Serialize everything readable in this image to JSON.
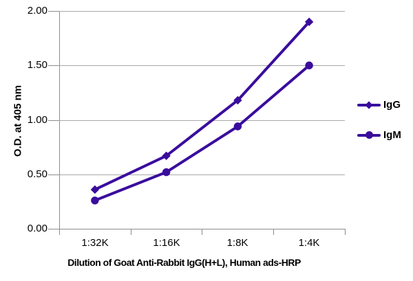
{
  "chart_data": {
    "type": "line",
    "xlabel": "Dilution of Goat Anti-Rabbit IgG(H+L), Human ads-HRP",
    "ylabel": "O.D. at 405 nm",
    "categories": [
      "1:32K",
      "1:16K",
      "1:8K",
      "1:4K"
    ],
    "series": [
      {
        "name": "IgG",
        "marker": "diamond",
        "values": [
          0.36,
          0.67,
          1.18,
          1.9
        ]
      },
      {
        "name": "IgM",
        "marker": "circle",
        "values": [
          0.26,
          0.52,
          0.94,
          1.5
        ]
      }
    ],
    "ylim": [
      0,
      2.0
    ],
    "ytick_step": 0.5,
    "yticks": [
      {
        "value": 2.0,
        "label": "2.00"
      },
      {
        "value": 1.5,
        "label": "1.50"
      },
      {
        "value": 1.0,
        "label": "1.00"
      },
      {
        "value": 0.5,
        "label": "0.50"
      },
      {
        "value": 0.0,
        "label": "0.00"
      }
    ],
    "grid": "horizontal",
    "legend_position": "right",
    "colors": {
      "series": "#3a0d9d",
      "grid": "#a8a8a8",
      "axis": "#8c8c8c",
      "text": "#000000",
      "background": "#ffffff"
    }
  },
  "legend": {
    "items": [
      {
        "label": "IgG"
      },
      {
        "label": "IgM"
      }
    ]
  }
}
